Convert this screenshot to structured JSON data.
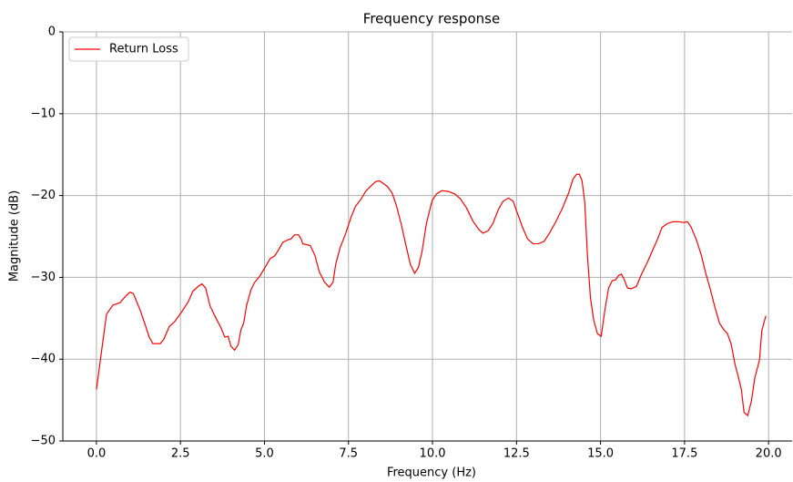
{
  "chart_data": {
    "type": "line",
    "title": "Frequency response",
    "xlabel": "Frequency (Hz)",
    "ylabel": "Magnitude (dB)",
    "x": [
      0,
      0.3,
      0.49,
      0.7,
      0.87,
      1.0,
      1.1,
      1.3,
      1.46,
      1.57,
      1.68,
      1.9,
      2.0,
      2.17,
      2.33,
      2.54,
      2.73,
      2.87,
      3.03,
      3.14,
      3.25,
      3.38,
      3.57,
      3.7,
      3.82,
      3.92,
      4.0,
      4.11,
      4.22,
      4.3,
      4.38,
      4.47,
      4.6,
      4.71,
      4.87,
      5.03,
      5.17,
      5.3,
      5.41,
      5.55,
      5.71,
      5.79,
      5.9,
      6.01,
      6.09,
      6.14,
      6.36,
      6.5,
      6.63,
      6.79,
      6.93,
      7.04,
      7.12,
      7.25,
      7.42,
      7.58,
      7.71,
      7.88,
      8.01,
      8.15,
      8.31,
      8.42,
      8.53,
      8.66,
      8.8,
      8.93,
      9.07,
      9.2,
      9.34,
      9.47,
      9.58,
      9.69,
      9.82,
      9.99,
      10.12,
      10.28,
      10.47,
      10.66,
      10.83,
      11.01,
      11.2,
      11.37,
      11.5,
      11.66,
      11.8,
      11.96,
      12.1,
      12.26,
      12.4,
      12.53,
      12.67,
      12.83,
      12.99,
      13.15,
      13.32,
      13.48,
      13.67,
      13.86,
      14.05,
      14.18,
      14.29,
      14.37,
      14.45,
      14.53,
      14.61,
      14.7,
      14.8,
      14.91,
      15.02,
      15.13,
      15.24,
      15.35,
      15.45,
      15.53,
      15.62,
      15.7,
      15.8,
      15.91,
      16.07,
      16.21,
      16.4,
      16.56,
      16.7,
      16.83,
      17.0,
      17.16,
      17.32,
      17.48,
      17.59,
      17.7,
      17.86,
      18.0,
      18.13,
      18.27,
      18.4,
      18.54,
      18.67,
      18.78,
      18.89,
      19.0,
      19.11,
      19.19,
      19.27,
      19.38,
      19.49,
      19.59,
      19.73,
      19.8,
      19.92
    ],
    "series": [
      {
        "name": "Return Loss",
        "color": "#ff0000",
        "values": [
          -43.7,
          -34.5,
          -33.4,
          -33.1,
          -32.3,
          -31.8,
          -32,
          -34,
          -35.9,
          -37.3,
          -38.1,
          -38.1,
          -37.6,
          -36,
          -35.4,
          -34.2,
          -33,
          -31.7,
          -31.1,
          -30.8,
          -31.3,
          -33.5,
          -35.1,
          -36.1,
          -37.3,
          -37.2,
          -38.4,
          -38.9,
          -38.2,
          -36.4,
          -35.6,
          -33.4,
          -31.5,
          -30.6,
          -29.8,
          -28.7,
          -27.7,
          -27.4,
          -26.7,
          -25.7,
          -25.4,
          -25.3,
          -24.8,
          -24.8,
          -25.3,
          -25.9,
          -26.1,
          -27.3,
          -29.3,
          -30.6,
          -31.2,
          -30.6,
          -28.4,
          -26.4,
          -24.6,
          -22.6,
          -21.3,
          -20.4,
          -19.5,
          -18.9,
          -18.3,
          -18.2,
          -18.5,
          -18.9,
          -19.7,
          -21.3,
          -23.5,
          -25.9,
          -28.4,
          -29.5,
          -28.8,
          -26.8,
          -23.4,
          -20.6,
          -19.8,
          -19.4,
          -19.5,
          -19.8,
          -20.4,
          -21.5,
          -23.1,
          -24.1,
          -24.6,
          -24.3,
          -23.4,
          -21.7,
          -20.7,
          -20.3,
          -20.7,
          -22.2,
          -23.8,
          -25.3,
          -25.9,
          -25.9,
          -25.6,
          -24.6,
          -23.2,
          -21.6,
          -19.7,
          -18,
          -17.4,
          -17.4,
          -18.2,
          -20.8,
          -27.3,
          -32.5,
          -35.3,
          -36.9,
          -37.2,
          -34,
          -31.3,
          -30.4,
          -30.3,
          -29.8,
          -29.6,
          -30.2,
          -31.3,
          -31.4,
          -31.1,
          -29.7,
          -28.1,
          -26.6,
          -25.3,
          -23.9,
          -23.4,
          -23.2,
          -23.2,
          -23.3,
          -23.2,
          -23.9,
          -25.5,
          -27.3,
          -29.5,
          -31.5,
          -33.6,
          -35.6,
          -36.4,
          -36.9,
          -38.2,
          -40.6,
          -42.3,
          -43.7,
          -46.5,
          -46.9,
          -45.1,
          -42.3,
          -40.1,
          -36.5,
          -34.7
        ]
      }
    ],
    "xlim": [
      -1,
      20.7
    ],
    "ylim": [
      -50,
      0
    ],
    "xticks": [
      {
        "value": 0,
        "label": "0.0"
      },
      2.5,
      {
        "value": 5,
        "label": "5.0"
      },
      7.5,
      {
        "value": 10,
        "label": "10.0"
      },
      12.5,
      {
        "value": 15,
        "label": "15.0"
      },
      17.5,
      {
        "value": 20,
        "label": "20.0"
      }
    ],
    "yticks": [
      {
        "value": -50,
        "label": "−50"
      },
      {
        "value": -40,
        "label": "−40"
      },
      {
        "value": -30,
        "label": "−30"
      },
      {
        "value": -20,
        "label": "−20"
      },
      {
        "value": -10,
        "label": "−10"
      },
      0
    ],
    "grid": true,
    "legend": "upper left"
  }
}
